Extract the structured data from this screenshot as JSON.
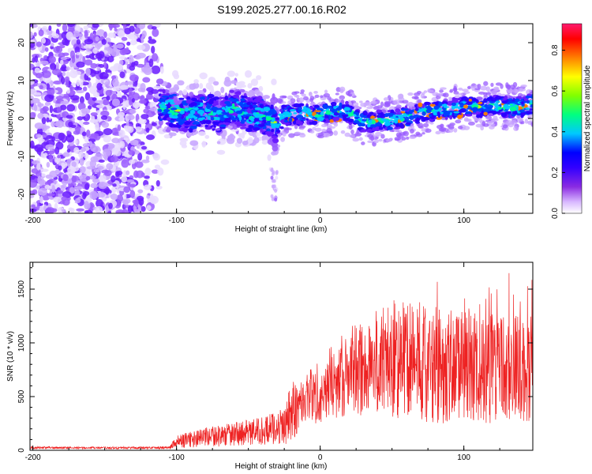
{
  "figure_title": "S199.2025.277.00.16.R02",
  "chart_data": [
    {
      "type": "heatmap",
      "title": "S199.2025.277.00.16.R02",
      "xlabel": "Height of straight line (km)",
      "ylabel": "Frequency (Hz)",
      "xlim": [
        -202,
        148
      ],
      "ylim": [
        -25,
        25
      ],
      "x_ticks": [
        -200,
        -100,
        0,
        100
      ],
      "x_tick_labels": [
        "-200",
        "-100",
        "0",
        "100"
      ],
      "y_ticks": [
        -20,
        -10,
        0,
        10,
        20
      ],
      "y_tick_labels": [
        "-20",
        "-10",
        "0",
        "10",
        "20"
      ],
      "colorbar": {
        "label": "Normalized spectral amplitude",
        "range": [
          0,
          0.93
        ],
        "ticks": [
          0,
          0.2,
          0.4,
          0.6,
          0.8
        ],
        "tick_labels": [
          "0.0",
          "0.2",
          "0.4",
          "0.6",
          "0.8"
        ],
        "colormap": [
          "#ffffff",
          "#d8b8ff",
          "#8a2be2",
          "#4400ff",
          "#0000ff",
          "#00c8ff",
          "#00ff80",
          "#80ff00",
          "#ffff00",
          "#ff8000",
          "#ff0000",
          "#ff0066"
        ]
      },
      "signal_track": {
        "description_values": "approximate center frequency (Hz) of strong signal vs height (km)",
        "height_km": [
          -110,
          -100,
          -90,
          -80,
          -70,
          -60,
          -50,
          -40,
          -35,
          -30,
          -25,
          -20,
          -15,
          -10,
          -5,
          0,
          5,
          10,
          15,
          20,
          25,
          30,
          35,
          40,
          50,
          60,
          70,
          80,
          90,
          100,
          110,
          120,
          130,
          140,
          148
        ],
        "frequency_hz": [
          3,
          2,
          1,
          2,
          1,
          3,
          1,
          1,
          0,
          -2,
          1,
          1,
          1,
          1.5,
          1,
          1,
          1.5,
          2,
          2,
          1.5,
          0,
          -1,
          -1,
          -0.5,
          -0.5,
          0.5,
          1.5,
          2,
          2.5,
          3,
          3,
          3.5,
          3,
          3,
          4
        ]
      }
    },
    {
      "type": "line",
      "title": "",
      "xlabel": "Height of straight line (km)",
      "ylabel": "SNR (10 * v/v)",
      "xlim": [
        -202,
        148
      ],
      "ylim": [
        0,
        1750
      ],
      "x_ticks": [
        -200,
        -100,
        0,
        100
      ],
      "x_tick_labels": [
        "-200",
        "-100",
        "0",
        "100"
      ],
      "y_ticks": [
        0,
        500,
        1000,
        1500
      ],
      "y_tick_labels": [
        "0",
        "500",
        "1000",
        "1500"
      ],
      "color": "#ee2222",
      "envelope": {
        "description_values": "approximate mean SNR and fluctuation amplitude vs height (km)",
        "height_km": [
          -202,
          -150,
          -105,
          -100,
          -80,
          -60,
          -40,
          -25,
          -20,
          -15,
          -10,
          0,
          10,
          20,
          30,
          40,
          50,
          60,
          70,
          80,
          90,
          100,
          110,
          120,
          130,
          140,
          148
        ],
        "mean": [
          25,
          22,
          25,
          80,
          120,
          150,
          180,
          230,
          350,
          420,
          480,
          560,
          650,
          720,
          770,
          820,
          850,
          830,
          820,
          800,
          790,
          780,
          770,
          760,
          750,
          760,
          760
        ],
        "amplitude": [
          10,
          10,
          12,
          60,
          90,
          110,
          130,
          170,
          300,
          230,
          250,
          300,
          350,
          420,
          450,
          500,
          550,
          560,
          560,
          550,
          540,
          530,
          520,
          510,
          500,
          500,
          500
        ]
      }
    }
  ]
}
